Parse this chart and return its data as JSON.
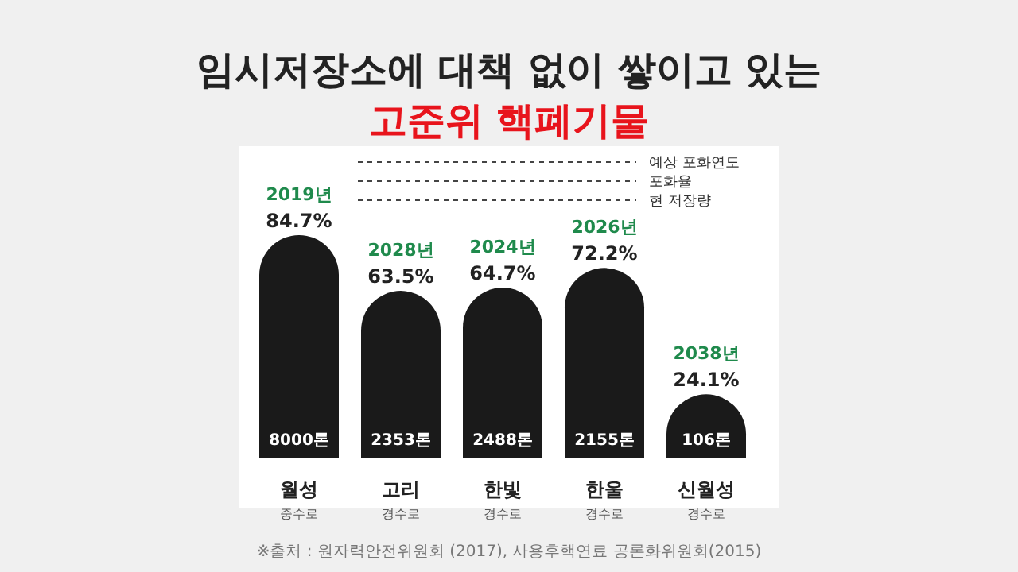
{
  "chart_data": {
    "type": "bar",
    "title": "임시저장소에 대책 없이 쌓이고 있는",
    "subtitle": "고준위 핵폐기물",
    "categories": [
      "월성\n중수로",
      "고리\n경수로",
      "한빛\n경수로",
      "한울\n경수로",
      "신월성\n경수로"
    ],
    "values": [
      84.7,
      63.5,
      64.7,
      72.2,
      24.1
    ],
    "value_labels": [
      "84.7%",
      "63.5%",
      "64.7%",
      "72.2%",
      "24.1%"
    ],
    "color": "#1a1a1a",
    "annotations": [
      {
        "text": "2019년",
        "x": "월성\n중수로",
        "y": 84.7
      },
      {
        "text": "2028년",
        "x": "고리\n경수로",
        "y": 63.5
      },
      {
        "text": "2024년",
        "x": "한빛\n경수로",
        "y": 64.7
      },
      {
        "text": "2026년",
        "x": "한울\n경수로",
        "y": 72.2
      },
      {
        "text": "2038년",
        "x": "신월성\n경수로",
        "y": 24.1
      },
      "8000톤",
      "2353톤",
      "2488톤",
      "2155톤",
      "106톤",
      "예상 포화연도",
      "포화율",
      "현 저장량",
      "※출처 : 원자력안전위원회 (2017), 사용후핵연료 공론화위원회(2015)"
    ]
  }
}
